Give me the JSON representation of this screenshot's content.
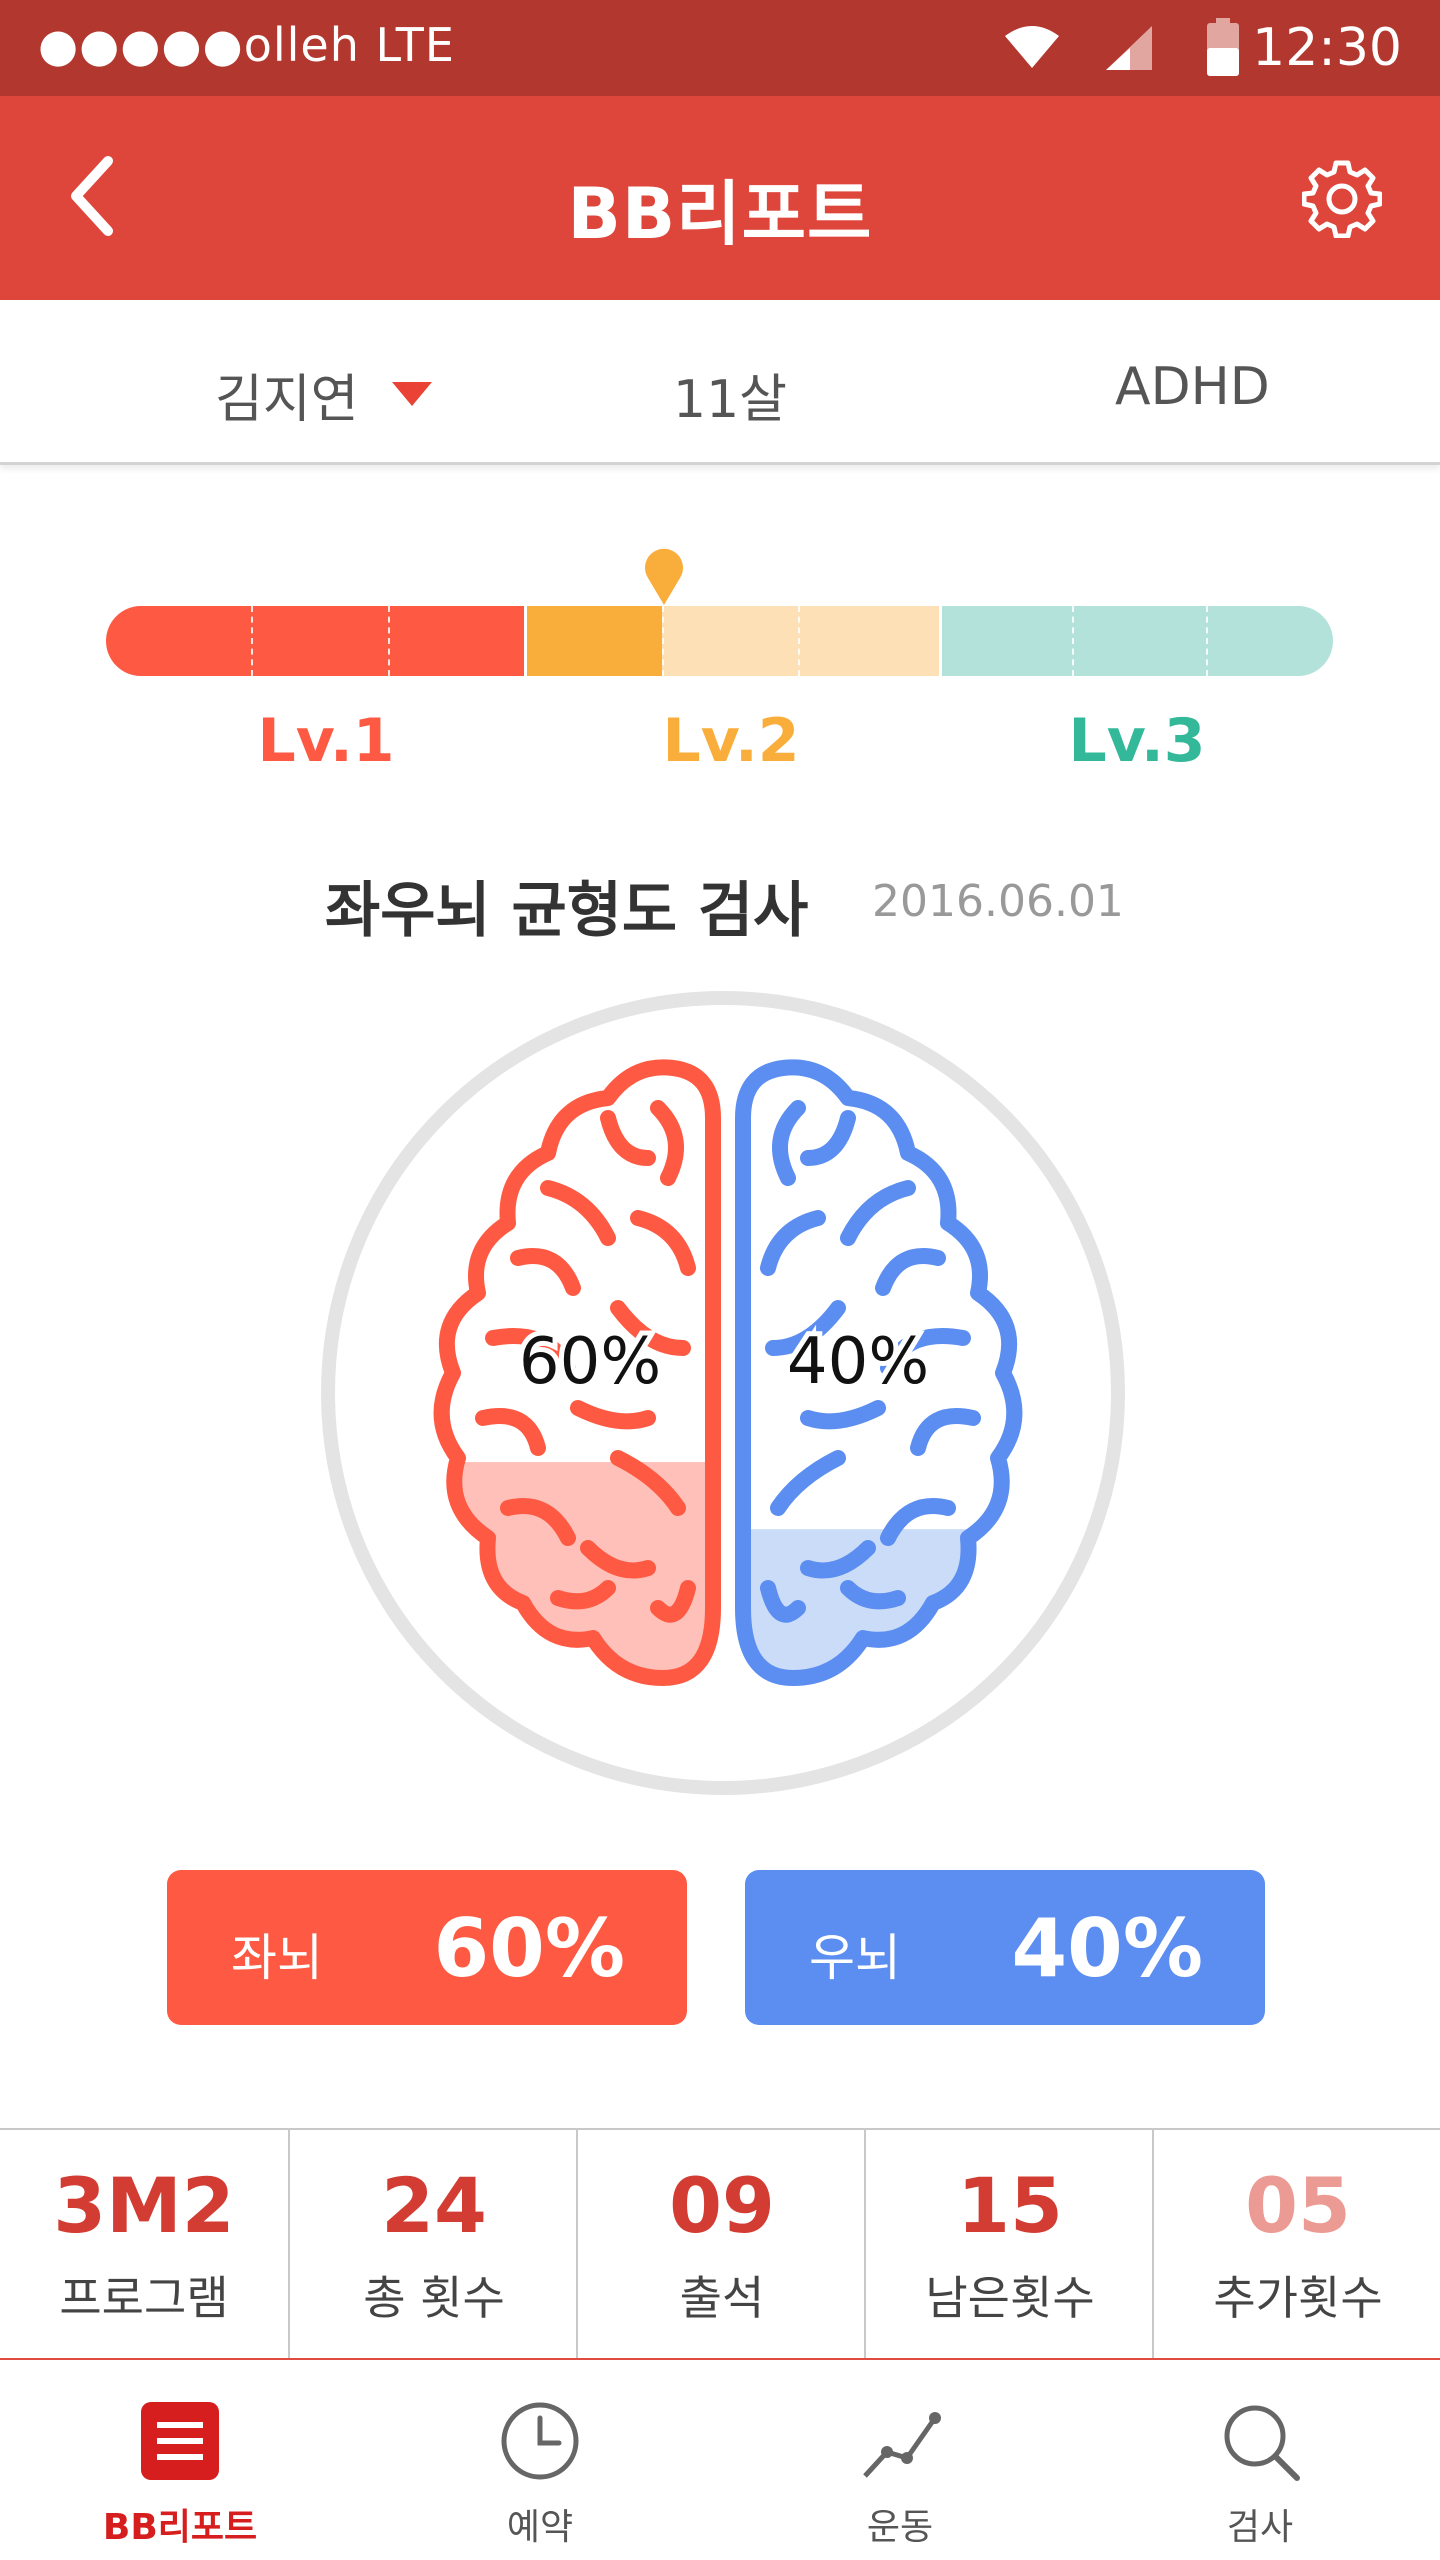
{
  "status_bar": {
    "carrier": "●●●●●olleh  LTE",
    "time": "12:30"
  },
  "header": {
    "title": "BB리포트"
  },
  "profile": {
    "name": "김지연",
    "age": "11살",
    "diagnosis": "ADHD"
  },
  "levels": {
    "labels": [
      "Lv.1",
      "Lv.2",
      "Lv.3"
    ],
    "colors": [
      "#fe5a43",
      "#f9ae3b",
      "#34b89a"
    ],
    "current_position": 0.455
  },
  "test": {
    "title": "좌우뇌 균형도 검사",
    "date": "2016.06.01"
  },
  "brain": {
    "left_percent": "60%",
    "right_percent": "40%",
    "left_value": 60,
    "right_value": 40
  },
  "pills": {
    "left": {
      "label": "좌뇌",
      "value": "60%",
      "color": "#fe5a43"
    },
    "right": {
      "label": "우뇌",
      "value": "40%",
      "color": "#5b8ef0"
    }
  },
  "stats": [
    {
      "value": "3M2",
      "label": "프로그램"
    },
    {
      "value": "24",
      "label": "총 횟수"
    },
    {
      "value": "09",
      "label": "출석"
    },
    {
      "value": "15",
      "label": "남은횟수"
    },
    {
      "value": "05",
      "label": "추가횟수"
    }
  ],
  "nav": [
    {
      "label": "BB리포트",
      "icon": "menu-icon",
      "active": true
    },
    {
      "label": "예약",
      "icon": "clock-icon",
      "active": false
    },
    {
      "label": "운동",
      "icon": "chart-line-icon",
      "active": false
    },
    {
      "label": "검사",
      "icon": "search-icon",
      "active": false
    }
  ]
}
